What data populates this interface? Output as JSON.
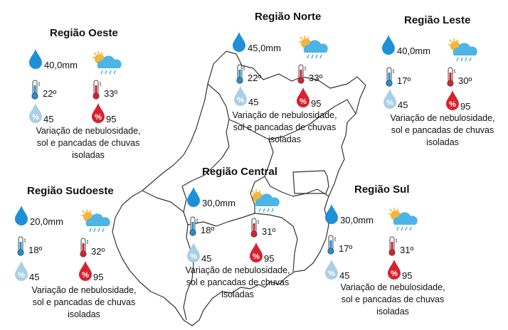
{
  "colors": {
    "drop_blue": "#1e90d8",
    "drop_light": "#a9cfe6",
    "drop_red": "#d8212f",
    "cloud": "#4cb4e6",
    "sun": "#f5b53c",
    "map_stroke": "#333333"
  },
  "icons": {
    "rain": "raindrop-icon",
    "weather": "sun-cloud-rain-icon",
    "tmin": "thermometer-cold-icon",
    "tmax": "thermometer-hot-icon",
    "hmin": "humidity-low-icon",
    "hmax": "humidity-high-icon"
  },
  "regions": {
    "oeste": {
      "title": "Região Oeste",
      "rain": "40,0mm",
      "tmin": "22º",
      "tmax": "33º",
      "hmin": "45",
      "hmax": "95",
      "description": [
        "Variação de nebulosidade,",
        "sol e pancadas de chuvas",
        "isoladas"
      ]
    },
    "norte": {
      "title": "Região Norte",
      "rain": "45,0mm",
      "tmin": "22º",
      "tmax": "33º",
      "hmin": "45",
      "hmax": "95",
      "description": [
        "Variação de nebulosidade,",
        "sol e pancadas de chuvas",
        "isoladas"
      ]
    },
    "leste": {
      "title": "Região Leste",
      "rain": "40,0mm",
      "tmin": "17º",
      "tmax": "30º",
      "hmin": "45",
      "hmax": "95",
      "description": [
        "Variação de nebulosidade,",
        "sol e pancadas de chuvas",
        "isoladas"
      ]
    },
    "central": {
      "title": "Região Central",
      "rain": "30,0mm",
      "tmin": "18º",
      "tmax": "31º",
      "hmin": "45",
      "hmax": "95",
      "description": [
        "Variação de nebulosidade,",
        "sol e pancadas de chuvas",
        "isoladas"
      ]
    },
    "sudoeste": {
      "title": "Região Sudoeste",
      "rain": "20,0mm",
      "tmin": "18º",
      "tmax": "32º",
      "hmin": "45",
      "hmax": "95",
      "description": [
        "Variação de nebulosidade,",
        "sol e pancadas de chuvas",
        "isoladas"
      ]
    },
    "sul": {
      "title": "Região Sul",
      "rain": "30,0mm",
      "tmin": "17º",
      "tmax": "31º",
      "hmin": "45",
      "hmax": "95",
      "description": [
        "Variação de nebulosidade,",
        "sol e pancadas de chuvas",
        "isoladas"
      ]
    }
  }
}
